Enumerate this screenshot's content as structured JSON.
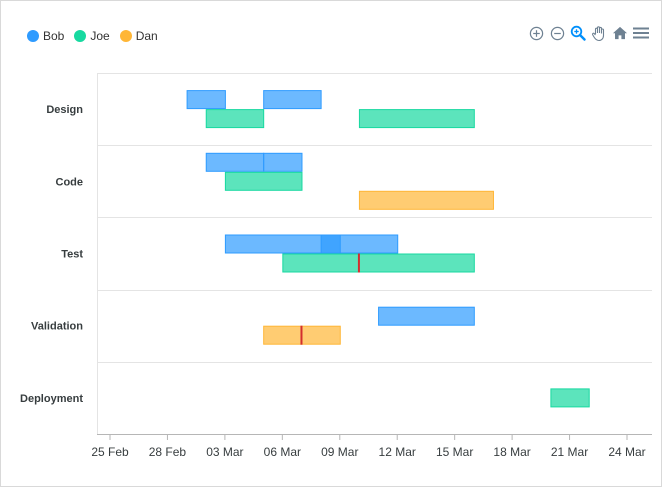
{
  "chart_data": {
    "type": "rangeBar",
    "title": "",
    "xlabel": "",
    "ylabel": "",
    "categories": [
      "Design",
      "Code",
      "Test",
      "Validation",
      "Deployment"
    ],
    "xlim": [
      "2019-02-24",
      "2019-03-25"
    ],
    "x_ticks": [
      {
        "date": "2019-02-25",
        "label": "25 Feb"
      },
      {
        "date": "2019-02-28",
        "label": "28 Feb"
      },
      {
        "date": "2019-03-03",
        "label": "03 Mar"
      },
      {
        "date": "2019-03-06",
        "label": "06 Mar"
      },
      {
        "date": "2019-03-09",
        "label": "09 Mar"
      },
      {
        "date": "2019-03-12",
        "label": "12 Mar"
      },
      {
        "date": "2019-03-15",
        "label": "15 Mar"
      },
      {
        "date": "2019-03-18",
        "label": "18 Mar"
      },
      {
        "date": "2019-03-21",
        "label": "21 Mar"
      },
      {
        "date": "2019-03-24",
        "label": "24 Mar"
      }
    ],
    "grid": true,
    "legend_position": "top-left",
    "series": [
      {
        "name": "Bob",
        "color": "#2e9bff",
        "data": [
          {
            "category": "Design",
            "start": "2019-03-01",
            "end": "2019-03-03"
          },
          {
            "category": "Design",
            "start": "2019-03-05",
            "end": "2019-03-08"
          },
          {
            "category": "Code",
            "start": "2019-03-02",
            "end": "2019-03-05"
          },
          {
            "category": "Code",
            "start": "2019-03-05",
            "end": "2019-03-07"
          },
          {
            "category": "Test",
            "start": "2019-03-03",
            "end": "2019-03-09"
          },
          {
            "category": "Test",
            "start": "2019-03-08",
            "end": "2019-03-12"
          },
          {
            "category": "Validation",
            "start": "2019-03-11",
            "end": "2019-03-16"
          }
        ]
      },
      {
        "name": "Joe",
        "color": "#17d9a0",
        "data": [
          {
            "category": "Design",
            "start": "2019-03-02",
            "end": "2019-03-05"
          },
          {
            "category": "Design",
            "start": "2019-03-10",
            "end": "2019-03-16"
          },
          {
            "category": "Code",
            "start": "2019-03-03",
            "end": "2019-03-07"
          },
          {
            "category": "Test",
            "start": "2019-03-06",
            "end": "2019-03-16"
          },
          {
            "category": "Deployment",
            "start": "2019-03-20",
            "end": "2019-03-22"
          }
        ]
      },
      {
        "name": "Dan",
        "color": "#ffb636",
        "data": [
          {
            "category": "Code",
            "start": "2019-03-10",
            "end": "2019-03-17"
          },
          {
            "category": "Validation",
            "start": "2019-03-05",
            "end": "2019-03-09"
          }
        ]
      }
    ],
    "markers": [
      {
        "category": "Test",
        "series": "Joe",
        "date": "2019-03-10",
        "color": "#d32f2f"
      },
      {
        "category": "Validation",
        "series": "Dan",
        "date": "2019-03-07",
        "color": "#d32f2f"
      }
    ]
  },
  "toolbar": {
    "icons": [
      "zoom-in-icon",
      "zoom-out-icon",
      "selection-zoom-icon",
      "pan-hand-icon",
      "reset-home-icon",
      "menu-icon"
    ],
    "active_icon": "selection-zoom-icon",
    "icon_color": "#6e8192",
    "active_color": "#008ffb"
  }
}
